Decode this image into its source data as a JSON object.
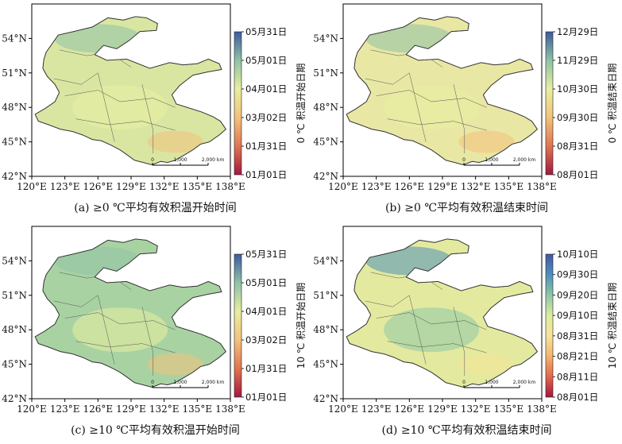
{
  "axes": {
    "x_ticks": [
      "120°E",
      "123°E",
      "126°E",
      "129°E",
      "132°E",
      "135°E",
      "138°E"
    ],
    "y_ticks": [
      "54°N",
      "51°N",
      "48°N",
      "45°N",
      "42°N"
    ]
  },
  "scale_bar": {
    "labels": [
      "0",
      "1,000",
      "2,000 km"
    ]
  },
  "panels": [
    {
      "id": "a",
      "caption": "(a) ≥0 ℃平均有效积温开始时间",
      "legend_title": "0 ℃ 积温开始日期",
      "legend_labels": [
        "05月31日",
        "05月01日",
        "04月01日",
        "03月02日",
        "01月31日",
        "01月01日"
      ],
      "legend_colors": [
        "#3d5a9e",
        "#8fc2a6",
        "#e8eea0",
        "#f2c27c",
        "#e07550",
        "#a3173f"
      ],
      "map_fill": "#d9e6a2"
    },
    {
      "id": "b",
      "caption": "(b) ≥0 ℃平均有效积温结束时间",
      "legend_title": "0 ℃ 积温结束日期",
      "legend_labels": [
        "12月29日",
        "11月29日",
        "10月30日",
        "09月30日",
        "08月31日",
        "08月01日"
      ],
      "legend_colors": [
        "#3d5a9e",
        "#8fc2a6",
        "#e8eea0",
        "#f2c27c",
        "#e07550",
        "#a3173f"
      ],
      "map_fill": "#e9e7a4"
    },
    {
      "id": "c",
      "caption": "(c) ≥10 ℃平均有效积温开始时间",
      "legend_title": "10 ℃ 积温开始日期",
      "legend_labels": [
        "05月31日",
        "05月01日",
        "04月01日",
        "03月02日",
        "01月31日",
        "01月01日"
      ],
      "legend_colors": [
        "#3d5a9e",
        "#8fc2a6",
        "#e8eea0",
        "#f2c27c",
        "#e07550",
        "#a3173f"
      ],
      "map_fill": "#a9d2a3"
    },
    {
      "id": "d",
      "caption": "(d) ≥10 ℃平均有效积温结束时间",
      "legend_title": "10 ℃ 积温结束日期",
      "legend_labels": [
        "10月10日",
        "09月30日",
        "09月20日",
        "09月10日",
        "08月31日",
        "08月21日",
        "08月11日",
        "08月01日"
      ],
      "legend_colors": [
        "#4159a3",
        "#4f8fb8",
        "#8fc6a7",
        "#dcec9f",
        "#f6e49a",
        "#f3b46e",
        "#e5664a",
        "#a3173f"
      ],
      "map_fill": "#e3ea9f"
    }
  ]
}
